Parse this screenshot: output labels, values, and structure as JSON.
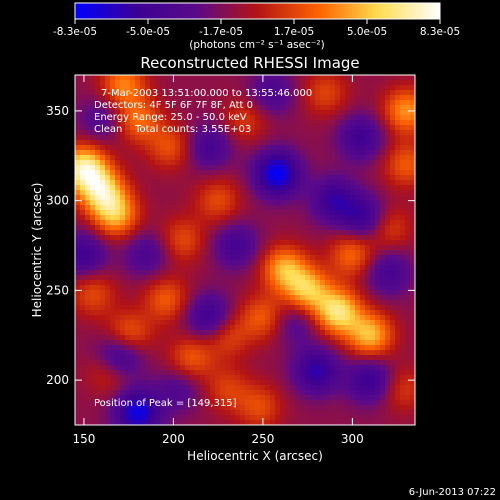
{
  "chart_data": {
    "type": "heatmap",
    "title": "Reconstructed RHESSI Image",
    "xlabel": "Heliocentric X (arcsec)",
    "ylabel": "Heliocentric Y (arcsec)",
    "xlim": [
      145,
      335
    ],
    "ylim": [
      175,
      370
    ],
    "x_ticks": [
      150,
      200,
      250,
      300
    ],
    "y_ticks": [
      200,
      250,
      300,
      350
    ],
    "colorbar": {
      "min": -8.3e-05,
      "max": 8.3e-05,
      "tick_labels": [
        "-8.3e-05",
        "-5.0e-05",
        "-1.7e-05",
        "1.7e-05",
        "5.0e-05",
        "8.3e-05"
      ],
      "unit_label": "(photons cm⁻² s⁻¹ asec⁻²)",
      "colors": [
        "#0000ff",
        "#3c0094",
        "#5a0a8a",
        "#b41414",
        "#ff6400",
        "#ffdc50",
        "#ffffff"
      ]
    },
    "annotations": {
      "time_range": "7-Mar-2003 13:51:00.000 to 13:55:46.000",
      "detectors": "Detectors: 4F 5F 6F 7F 8F, Att 0",
      "energy_range": "Energy Range: 25.0 - 50.0 keV",
      "method_counts": "Clean    Total counts: 3.55E+03",
      "peak": "Position of Peak = [149,315]"
    },
    "peak_position": [
      149,
      315
    ],
    "blobs": [
      {
        "x": 150,
        "y": 318,
        "v": 8e-05
      },
      {
        "x": 160,
        "y": 305,
        "v": 6.5e-05
      },
      {
        "x": 168,
        "y": 292,
        "v": 5.5e-05
      },
      {
        "x": 172,
        "y": 365,
        "v": 4.5e-05
      },
      {
        "x": 180,
        "y": 345,
        "v": 4e-05
      },
      {
        "x": 198,
        "y": 330,
        "v": 3.2e-05
      },
      {
        "x": 155,
        "y": 248,
        "v": 3e-05
      },
      {
        "x": 175,
        "y": 225,
        "v": 4e-05
      },
      {
        "x": 165,
        "y": 205,
        "v": 3e-05
      },
      {
        "x": 196,
        "y": 245,
        "v": 3.5e-05
      },
      {
        "x": 205,
        "y": 278,
        "v": 3e-05
      },
      {
        "x": 210,
        "y": 212,
        "v": 3.5e-05
      },
      {
        "x": 230,
        "y": 225,
        "v": 3e-05
      },
      {
        "x": 248,
        "y": 185,
        "v": 3e-05
      },
      {
        "x": 262,
        "y": 262,
        "v": 5.5e-05
      },
      {
        "x": 275,
        "y": 250,
        "v": 6e-05
      },
      {
        "x": 292,
        "y": 238,
        "v": 7.2e-05
      },
      {
        "x": 310,
        "y": 225,
        "v": 6e-05
      },
      {
        "x": 300,
        "y": 270,
        "v": 4e-05
      },
      {
        "x": 250,
        "y": 235,
        "v": 3.5e-05
      },
      {
        "x": 330,
        "y": 350,
        "v": 5e-05
      },
      {
        "x": 330,
        "y": 320,
        "v": 3.5e-05
      },
      {
        "x": 320,
        "y": 285,
        "v": 3e-05
      },
      {
        "x": 225,
        "y": 300,
        "v": 3e-05
      },
      {
        "x": 240,
        "y": 345,
        "v": 2.5e-05
      },
      {
        "x": 285,
        "y": 360,
        "v": 2.8e-05
      },
      {
        "x": 230,
        "y": 195,
        "v": 2.5e-05
      },
      {
        "x": 328,
        "y": 195,
        "v": 2.5e-05
      },
      {
        "x": 258,
        "y": 315,
        "v": -7e-05
      },
      {
        "x": 180,
        "y": 182,
        "v": -6.5e-05
      },
      {
        "x": 170,
        "y": 213,
        "v": -5.5e-05
      },
      {
        "x": 220,
        "y": 235,
        "v": -4.5e-05
      },
      {
        "x": 290,
        "y": 300,
        "v": -4.5e-05
      },
      {
        "x": 307,
        "y": 290,
        "v": -4.5e-05
      },
      {
        "x": 280,
        "y": 205,
        "v": -5e-05
      },
      {
        "x": 310,
        "y": 200,
        "v": -4.5e-05
      },
      {
        "x": 305,
        "y": 335,
        "v": -4e-05
      },
      {
        "x": 220,
        "y": 330,
        "v": -3.5e-05
      },
      {
        "x": 235,
        "y": 275,
        "v": -3.5e-05
      },
      {
        "x": 150,
        "y": 270,
        "v": -4e-05
      },
      {
        "x": 185,
        "y": 270,
        "v": -3e-05
      },
      {
        "x": 255,
        "y": 360,
        "v": -3e-05
      },
      {
        "x": 320,
        "y": 260,
        "v": -3.5e-05
      },
      {
        "x": 160,
        "y": 345,
        "v": -2.5e-05
      },
      {
        "x": 203,
        "y": 195,
        "v": -2.5e-05
      },
      {
        "x": 268,
        "y": 232,
        "v": -2.5e-05
      }
    ]
  },
  "footer": {
    "date_stamp": "6-Jun-2013 07:22"
  }
}
